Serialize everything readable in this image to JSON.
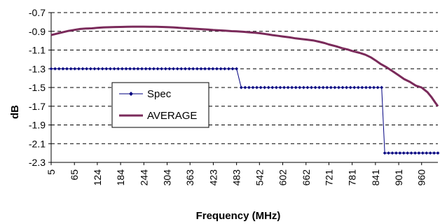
{
  "chart_data": {
    "type": "line",
    "title": "",
    "xlabel": "Frequency (MHz)",
    "ylabel": "dB",
    "ylim": [
      -2.3,
      -0.7
    ],
    "yticks": [
      -0.7,
      -0.9,
      -1.1,
      -1.3,
      -1.5,
      -1.7,
      -1.9,
      -2.1,
      -2.3
    ],
    "ytick_labels": [
      "-0.7",
      "-0.9",
      "-1.1",
      "-1.3",
      "-1.5",
      "-1.7",
      "-1.9",
      "-2.1",
      "-2.3"
    ],
    "xtick_labels": [
      "5",
      "65",
      "124",
      "184",
      "244",
      "304",
      "363",
      "423",
      "483",
      "542",
      "602",
      "662",
      "721",
      "781",
      "841",
      "901",
      "960"
    ],
    "xlim": [
      5,
      1002
    ],
    "grid": "horizontal dashed",
    "legend": "center-left",
    "colors": {
      "spec": "#000080",
      "average": "#7a2a5a"
    },
    "series": [
      {
        "name": "Spec",
        "marker": "diamond",
        "segments": [
          {
            "x": [
              5,
              483
            ],
            "y": [
              -1.3,
              -1.3
            ]
          },
          {
            "x": [
              495,
              857
            ],
            "y": [
              -1.5,
              -1.5
            ]
          },
          {
            "x": [
              865,
              1002
            ],
            "y": [
              -2.2,
              -2.2
            ]
          }
        ],
        "connectors": [
          {
            "x": [
              483,
              495
            ],
            "y": [
              -1.3,
              -1.5
            ]
          },
          {
            "x": [
              857,
              865
            ],
            "y": [
              -1.5,
              -2.2
            ]
          }
        ]
      },
      {
        "name": "AVERAGE",
        "x": [
          5,
          20,
          35,
          50,
          65,
          80,
          95,
          110,
          124,
          140,
          155,
          170,
          184,
          200,
          215,
          230,
          244,
          260,
          275,
          290,
          304,
          320,
          335,
          350,
          363,
          380,
          395,
          410,
          423,
          440,
          455,
          470,
          483,
          500,
          515,
          530,
          542,
          560,
          575,
          590,
          602,
          620,
          635,
          650,
          662,
          680,
          695,
          710,
          721,
          740,
          755,
          770,
          781,
          800,
          815,
          830,
          841,
          855,
          870,
          885,
          901,
          915,
          930,
          945,
          960,
          975,
          985,
          995,
          1002
        ],
        "y": [
          -0.94,
          -0.925,
          -0.91,
          -0.895,
          -0.885,
          -0.875,
          -0.87,
          -0.868,
          -0.862,
          -0.858,
          -0.856,
          -0.854,
          -0.853,
          -0.851,
          -0.85,
          -0.85,
          -0.85,
          -0.851,
          -0.852,
          -0.853,
          -0.855,
          -0.858,
          -0.862,
          -0.866,
          -0.87,
          -0.874,
          -0.878,
          -0.882,
          -0.886,
          -0.89,
          -0.894,
          -0.898,
          -0.9,
          -0.905,
          -0.91,
          -0.915,
          -0.92,
          -0.93,
          -0.94,
          -0.948,
          -0.955,
          -0.965,
          -0.975,
          -0.982,
          -0.988,
          -0.997,
          -1.01,
          -1.025,
          -1.04,
          -1.06,
          -1.08,
          -1.095,
          -1.11,
          -1.13,
          -1.15,
          -1.18,
          -1.21,
          -1.25,
          -1.285,
          -1.325,
          -1.37,
          -1.41,
          -1.44,
          -1.48,
          -1.5,
          -1.55,
          -1.6,
          -1.66,
          -1.7
        ]
      }
    ]
  }
}
